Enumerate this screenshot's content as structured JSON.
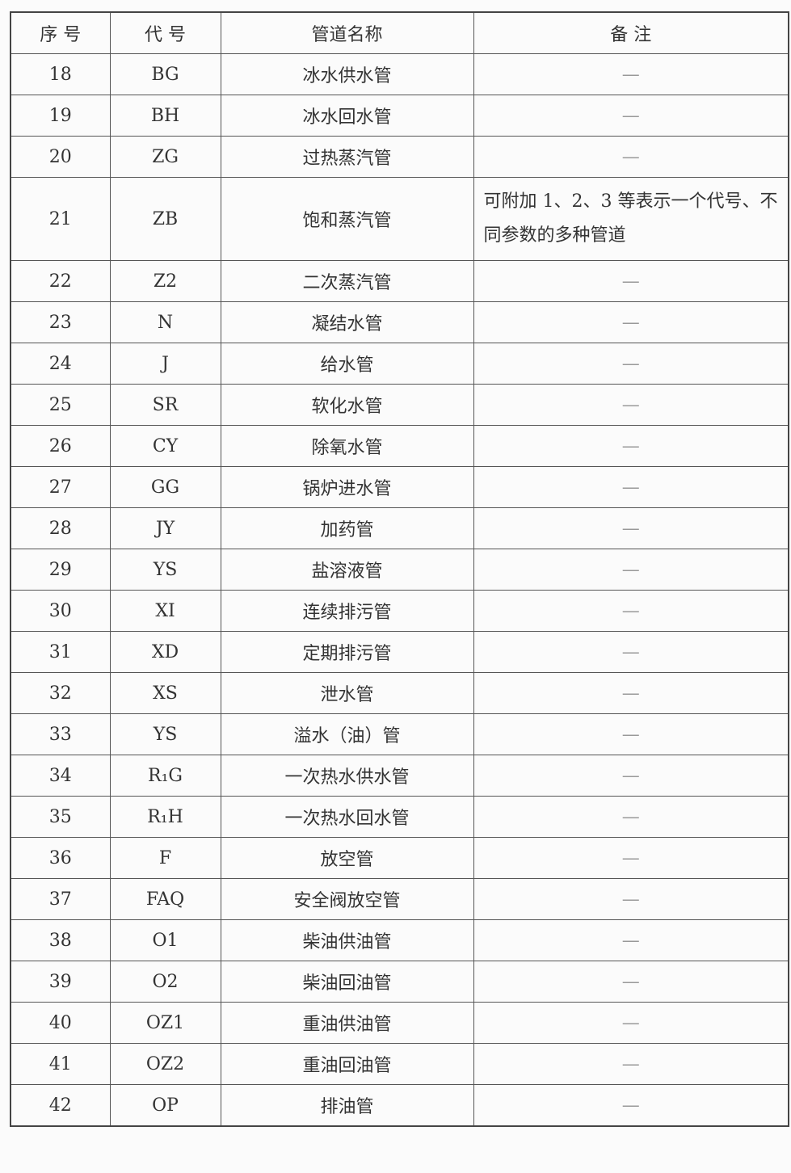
{
  "table": {
    "header": [
      "序 号",
      "代 号",
      "管道名称",
      "备 注"
    ],
    "rows": [
      [
        "18",
        "BG",
        "冰水供水管",
        "—"
      ],
      [
        "19",
        "BH",
        "冰水回水管",
        "—"
      ],
      [
        "20",
        "ZG",
        "过热蒸汽管",
        "—"
      ],
      [
        "21",
        "ZB",
        "饱和蒸汽管",
        "可附加 1、2、3 等表示一个代号、不同参数的多种管道"
      ],
      [
        "22",
        "Z2",
        "二次蒸汽管",
        "—"
      ],
      [
        "23",
        "N",
        "凝结水管",
        "—"
      ],
      [
        "24",
        "J",
        "给水管",
        "—"
      ],
      [
        "25",
        "SR",
        "软化水管",
        "—"
      ],
      [
        "26",
        "CY",
        "除氧水管",
        "—"
      ],
      [
        "27",
        "GG",
        "锅炉进水管",
        "—"
      ],
      [
        "28",
        "JY",
        "加药管",
        "—"
      ],
      [
        "29",
        "YS",
        "盐溶液管",
        "—"
      ],
      [
        "30",
        "XI",
        "连续排污管",
        "—"
      ],
      [
        "31",
        "XD",
        "定期排污管",
        "—"
      ],
      [
        "32",
        "XS",
        "泄水管",
        "—"
      ],
      [
        "33",
        "YS",
        "溢水（油）管",
        "—"
      ],
      [
        "34",
        "R₁G",
        "一次热水供水管",
        "—"
      ],
      [
        "35",
        "R₁H",
        "一次热水回水管",
        "—"
      ],
      [
        "36",
        "F",
        "放空管",
        "—"
      ],
      [
        "37",
        "FAQ",
        "安全阀放空管",
        "—"
      ],
      [
        "38",
        "O1",
        "柴油供油管",
        "—"
      ],
      [
        "39",
        "O2",
        "柴油回油管",
        "—"
      ],
      [
        "40",
        "OZ1",
        "重油供油管",
        "—"
      ],
      [
        "41",
        "OZ2",
        "重油回油管",
        "—"
      ],
      [
        "42",
        "OP",
        "排油管",
        "—"
      ]
    ]
  }
}
